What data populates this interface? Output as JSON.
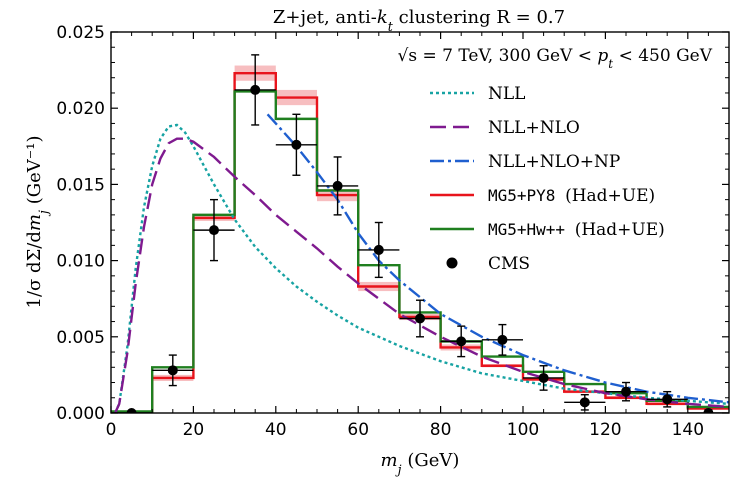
{
  "chart_data": {
    "type": "line",
    "title": "Z+jet, anti-k_t clustering R = 0.7",
    "annotation": "√s = 7 TeV, 300 GeV < p_t < 450 GeV",
    "xlabel": "m_j (GeV)",
    "ylabel": "1/σ dΣ/dm_j (GeV⁻¹)",
    "xlim": [
      0,
      150
    ],
    "ylim": [
      0,
      0.025
    ],
    "x_ticks": [
      "0",
      "20",
      "40",
      "60",
      "80",
      "100",
      "120",
      "140"
    ],
    "y_ticks": [
      "0.000",
      "0.005",
      "0.010",
      "0.015",
      "0.020",
      "0.025"
    ],
    "legend_position": "top-right",
    "series": [
      {
        "name": "NLL",
        "kind": "curve",
        "style": "dotted",
        "color": "#17a3a3",
        "x": [
          1,
          2,
          4,
          6,
          8,
          10,
          12,
          14,
          16,
          18,
          20,
          25,
          30,
          35,
          40,
          45,
          50,
          55,
          60,
          70,
          80,
          90,
          100,
          110,
          120,
          130,
          140,
          150
        ],
        "y": [
          0,
          0.0006,
          0.0044,
          0.0095,
          0.0135,
          0.0162,
          0.018,
          0.0188,
          0.0189,
          0.0184,
          0.0175,
          0.015,
          0.0127,
          0.0109,
          0.0095,
          0.0083,
          0.0073,
          0.0064,
          0.0056,
          0.0044,
          0.0034,
          0.0026,
          0.0021,
          0.0016,
          0.0013,
          0.001,
          0.0008,
          0.0006
        ]
      },
      {
        "name": "NLL+NLO",
        "kind": "curve",
        "style": "dashed",
        "color": "#7f1a8f",
        "x": [
          1,
          2,
          4,
          6,
          8,
          10,
          12,
          14,
          16,
          18,
          20,
          25,
          30,
          35,
          40,
          45,
          50,
          55,
          60,
          70,
          80,
          90,
          100,
          110,
          120,
          130,
          140,
          150
        ],
        "y": [
          0,
          0.0006,
          0.004,
          0.0085,
          0.0122,
          0.015,
          0.0167,
          0.0177,
          0.018,
          0.018,
          0.0178,
          0.0168,
          0.0155,
          0.0143,
          0.013,
          0.0119,
          0.0108,
          0.0096,
          0.0085,
          0.0065,
          0.005,
          0.0037,
          0.0027,
          0.0019,
          0.0013,
          0.0009,
          0.0006,
          0.0004
        ]
      },
      {
        "name": "NLL+NLO+NP",
        "kind": "curve",
        "style": "dashdot",
        "color": "#1f5fcf",
        "x": [
          38,
          40,
          45,
          50,
          55,
          60,
          65,
          70,
          80,
          90,
          100,
          110,
          120,
          130,
          140,
          150
        ],
        "y": [
          0.0196,
          0.019,
          0.0175,
          0.0158,
          0.014,
          0.0118,
          0.01,
          0.0087,
          0.0065,
          0.005,
          0.0038,
          0.0028,
          0.002,
          0.0014,
          0.001,
          0.0007
        ]
      },
      {
        "name": "MG5+PY8 (Had+UE)",
        "kind": "histogram",
        "color": "#e8141c",
        "band_color": "#f6b3b5",
        "edges": [
          0,
          10,
          20,
          30,
          40,
          50,
          60,
          70,
          80,
          90,
          100,
          110,
          120,
          130,
          140,
          150
        ],
        "values": [
          0.0,
          0.0023,
          0.0128,
          0.0223,
          0.0207,
          0.0143,
          0.0083,
          0.0063,
          0.0043,
          0.0031,
          0.0022,
          0.0014,
          0.001,
          0.0006,
          0.0003
        ],
        "band": [
          0.0,
          0.0002,
          0.0002,
          0.0005,
          0.0005,
          0.0004,
          0.0003,
          0.0002,
          0.0002,
          0.0001,
          0.0001,
          0.0001,
          0.0001,
          0.0001,
          0.0001
        ]
      },
      {
        "name": "MG5+Hw++ (Had+UE)",
        "kind": "histogram",
        "color": "#1f7f1f",
        "edges": [
          0,
          10,
          20,
          30,
          40,
          50,
          60,
          70,
          80,
          90,
          100,
          110,
          120,
          130,
          140,
          150
        ],
        "values": [
          0.0001,
          0.003,
          0.013,
          0.0211,
          0.0193,
          0.0146,
          0.0097,
          0.0066,
          0.0047,
          0.0037,
          0.0027,
          0.0019,
          0.0013,
          0.0008,
          0.0004
        ]
      },
      {
        "name": "CMS",
        "kind": "points",
        "color": "#000000",
        "x": [
          5,
          15,
          25,
          35,
          45,
          55,
          65,
          75,
          85,
          95,
          105,
          115,
          125,
          135,
          145
        ],
        "y": [
          0.0,
          0.0028,
          0.012,
          0.0212,
          0.0176,
          0.0149,
          0.0107,
          0.0062,
          0.0047,
          0.0048,
          0.0023,
          0.0007,
          0.0014,
          0.0009,
          0.0
        ],
        "yerr": [
          0.0001,
          0.001,
          0.002,
          0.0023,
          0.002,
          0.0019,
          0.0018,
          0.0012,
          0.001,
          0.001,
          0.0008,
          0.0005,
          0.0006,
          0.0005,
          0.0002
        ],
        "xerr": 5
      }
    ]
  }
}
